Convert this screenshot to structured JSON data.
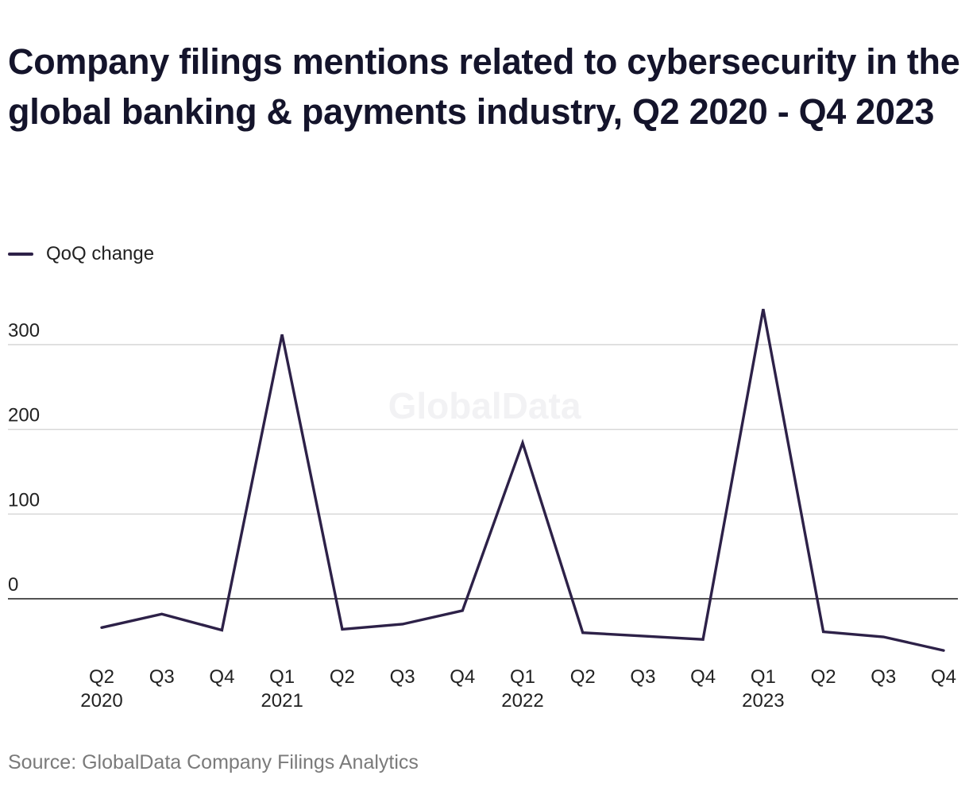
{
  "title": "Company filings mentions related to cybersecurity in the global banking & payments industry, Q2 2020 - Q4 2023",
  "source": "Source: GlobalData Company Filings Analytics",
  "watermark": "GlobalData",
  "legend": {
    "label": "QoQ change",
    "color": "#2d2148"
  },
  "chart_data": {
    "type": "line",
    "title": "Company filings mentions related to cybersecurity in the global banking & payments industry, Q2 2020 - Q4 2023",
    "xlabel": "",
    "ylabel": "",
    "categories": [
      "Q2 2020",
      "Q3 2020",
      "Q4 2020",
      "Q1 2021",
      "Q2 2021",
      "Q3 2021",
      "Q4 2021",
      "Q1 2022",
      "Q2 2022",
      "Q3 2022",
      "Q4 2022",
      "Q1 2023",
      "Q2 2023",
      "Q3 2023",
      "Q4 2023"
    ],
    "tick_labels": [
      [
        "Q2",
        "2020"
      ],
      [
        "Q3",
        ""
      ],
      [
        "Q4",
        ""
      ],
      [
        "Q1",
        "2021"
      ],
      [
        "Q2",
        ""
      ],
      [
        "Q3",
        ""
      ],
      [
        "Q4",
        ""
      ],
      [
        "Q1",
        "2022"
      ],
      [
        "Q2",
        ""
      ],
      [
        "Q3",
        ""
      ],
      [
        "Q4",
        ""
      ],
      [
        "Q1",
        "2023"
      ],
      [
        "Q2",
        ""
      ],
      [
        "Q3",
        ""
      ],
      [
        "Q4",
        ""
      ]
    ],
    "series": [
      {
        "name": "QoQ change",
        "color": "#2d2148",
        "values": [
          -34,
          -18,
          -37,
          312,
          -36,
          -30,
          -14,
          184,
          -40,
          -44,
          -48,
          342,
          -39,
          -45,
          -61
        ]
      }
    ],
    "yticks": [
      0,
      100,
      200,
      300
    ],
    "ylim": [
      -75,
      345
    ],
    "grid": true,
    "legend_position": "top-left"
  }
}
